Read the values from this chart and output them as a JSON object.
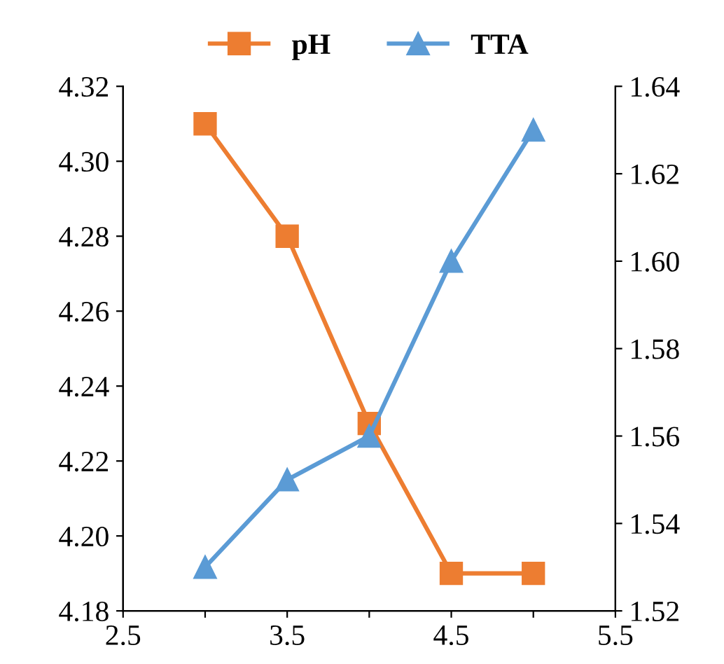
{
  "chart_data": {
    "type": "line",
    "x": [
      3,
      3.5,
      4,
      4.5,
      5
    ],
    "series": [
      {
        "name": "pH",
        "color": "#ed7d31",
        "values": [
          4.31,
          4.28,
          4.23,
          4.19,
          4.19
        ],
        "marker": "square"
      },
      {
        "name": "TTA",
        "color": "#5b9bd5",
        "values": [
          1.53,
          1.55,
          1.56,
          1.6,
          1.63
        ],
        "marker": "triangle",
        "axis": "y2"
      }
    ],
    "xlim": [
      2.5,
      5.5
    ],
    "xticks": [
      2.5,
      {
        "value": 3,
        "label": null
      },
      3.5,
      {
        "value": 4,
        "label": null
      },
      4.5,
      {
        "value": 5,
        "label": null
      },
      5.5
    ],
    "ylim": [
      4.18,
      4.32
    ],
    "yticks": [
      4.18,
      {
        "value": 4.2,
        "label": "4.20"
      },
      4.22,
      4.24,
      4.26,
      4.28,
      {
        "value": 4.3,
        "label": "4.30"
      },
      4.32
    ],
    "y2lim": [
      1.52,
      1.64
    ],
    "y2ticks": [
      1.52,
      1.54,
      1.56,
      1.58,
      {
        "value": 1.6,
        "label": "1.60"
      },
      1.62,
      1.64
    ],
    "legend": "top",
    "grid": false
  }
}
